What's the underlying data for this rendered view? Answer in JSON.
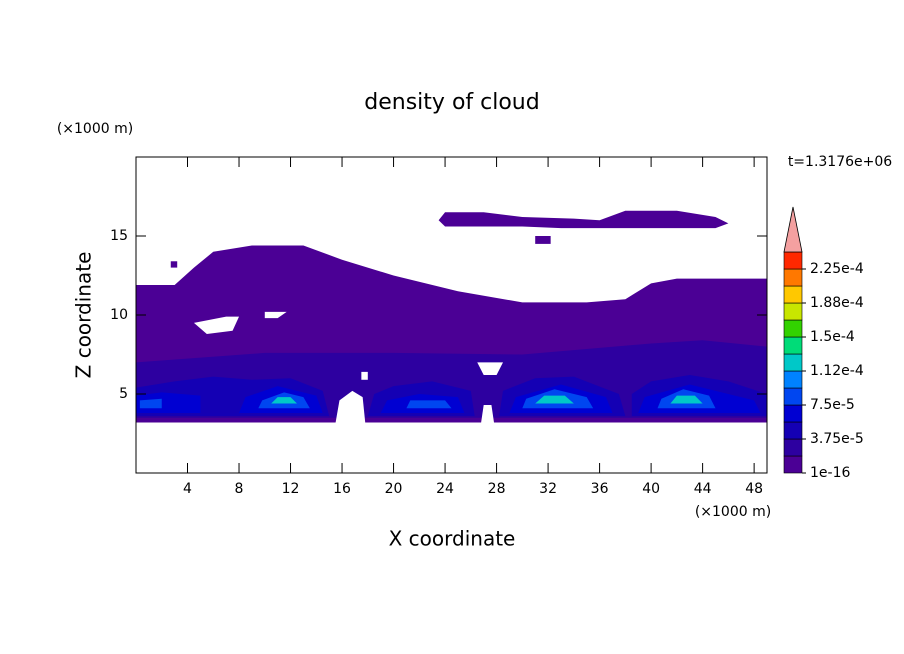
{
  "chart_data": {
    "type": "contour",
    "title": "density of cloud",
    "x_label": "X coordinate",
    "y_label": "Z coordinate",
    "x_unit_label": "(×1000 m)",
    "y_unit_label": "(×1000 m)",
    "annotation": "t=1.3176e+06",
    "xlim": [
      0,
      49
    ],
    "ylim": [
      0,
      20
    ],
    "xticks": [
      4,
      8,
      12,
      16,
      20,
      24,
      28,
      32,
      36,
      40,
      44,
      48
    ],
    "yticks": [
      5,
      10,
      15
    ],
    "colorbar": {
      "levels": [
        1e-16,
        1.875e-05,
        3.75e-05,
        5.625e-05,
        7.5e-05,
        9.375e-05,
        0.0001125,
        0.00013125,
        0.00015,
        0.00016875,
        0.0001875,
        0.00020625,
        0.000225,
        0.00024375
      ],
      "colors": [
        "#4b0095",
        "#2d00a0",
        "#1400b4",
        "#0000d2",
        "#0046f0",
        "#0082ff",
        "#00c8c8",
        "#00dc78",
        "#32d200",
        "#c8e600",
        "#ffc800",
        "#ff7800",
        "#ff2800"
      ],
      "extend_color": "#f4a0a0",
      "ticks": [
        {
          "value": 1e-16,
          "label": "1e-16"
        },
        {
          "value": 3.75e-05,
          "label": "3.75e-5"
        },
        {
          "value": 7.5e-05,
          "label": "7.5e-5"
        },
        {
          "value": 0.0001125,
          "label": "1.12e-4"
        },
        {
          "value": 0.00015,
          "label": "1.5e-4"
        },
        {
          "value": 0.0001875,
          "label": "1.88e-4"
        },
        {
          "value": 0.000225,
          "label": "2.25e-4"
        }
      ]
    },
    "regions": [
      {
        "level": 0,
        "points": [
          [
            0,
            11.9
          ],
          [
            3,
            11.9
          ],
          [
            4.5,
            13
          ],
          [
            6,
            14
          ],
          [
            9,
            14.4
          ],
          [
            13,
            14.4
          ],
          [
            16,
            13.5
          ],
          [
            20,
            12.5
          ],
          [
            25,
            11.5
          ],
          [
            30,
            10.8
          ],
          [
            35,
            10.8
          ],
          [
            38,
            11
          ],
          [
            40,
            12
          ],
          [
            42,
            12.3
          ],
          [
            49,
            12.3
          ],
          [
            49,
            3.2
          ],
          [
            0,
            3.2
          ]
        ]
      },
      {
        "level": 0,
        "points": [
          [
            23.5,
            16
          ],
          [
            24,
            16.5
          ],
          [
            27,
            16.5
          ],
          [
            30,
            16.2
          ],
          [
            34,
            16.1
          ],
          [
            36,
            16
          ],
          [
            38,
            16.6
          ],
          [
            42,
            16.6
          ],
          [
            45,
            16.2
          ],
          [
            46,
            15.8
          ],
          [
            45,
            15.5
          ],
          [
            38,
            15.5
          ],
          [
            33,
            15.5
          ],
          [
            30,
            15.6
          ],
          [
            24,
            15.6
          ]
        ]
      },
      {
        "level": 0,
        "points": [
          [
            31,
            15
          ],
          [
            32.2,
            15
          ],
          [
            32.2,
            14.5
          ],
          [
            31,
            14.5
          ]
        ]
      },
      {
        "level": 0,
        "points": [
          [
            2.7,
            13.4
          ],
          [
            3.2,
            13.4
          ],
          [
            3.2,
            13
          ],
          [
            2.7,
            13
          ]
        ]
      },
      {
        "level": 1,
        "points": [
          [
            0,
            3.5
          ],
          [
            49,
            3.5
          ],
          [
            49,
            8
          ],
          [
            44,
            8.4
          ],
          [
            40,
            8.2
          ],
          [
            30,
            7.5
          ],
          [
            20,
            7.6
          ],
          [
            10,
            7.6
          ],
          [
            0,
            7
          ]
        ]
      },
      {
        "level": 2,
        "points": [
          [
            0,
            3.6
          ],
          [
            15,
            3.6
          ],
          [
            14.5,
            5.2
          ],
          [
            12,
            6
          ],
          [
            9,
            5.9
          ],
          [
            6,
            6.1
          ],
          [
            3,
            5.8
          ],
          [
            0,
            5.4
          ]
        ]
      },
      {
        "level": 2,
        "points": [
          [
            18,
            3.6
          ],
          [
            26.3,
            3.6
          ],
          [
            26,
            5.2
          ],
          [
            23,
            5.8
          ],
          [
            20,
            5.5
          ],
          [
            18.5,
            5
          ]
        ]
      },
      {
        "level": 2,
        "points": [
          [
            28.2,
            3.6
          ],
          [
            38,
            3.6
          ],
          [
            37.5,
            5
          ],
          [
            34,
            6.1
          ],
          [
            31,
            6
          ],
          [
            28.5,
            5.2
          ]
        ]
      },
      {
        "level": 2,
        "points": [
          [
            38.5,
            3.6
          ],
          [
            49,
            3.6
          ],
          [
            49,
            5
          ],
          [
            46,
            5.8
          ],
          [
            43,
            6.2
          ],
          [
            40,
            5.8
          ],
          [
            38.5,
            5
          ]
        ]
      },
      {
        "level": 3,
        "points": [
          [
            0,
            3.8
          ],
          [
            5,
            3.8
          ],
          [
            5,
            4.9
          ],
          [
            2,
            5.1
          ],
          [
            0,
            4.9
          ]
        ]
      },
      {
        "level": 3,
        "points": [
          [
            8,
            3.8
          ],
          [
            14.5,
            3.8
          ],
          [
            14,
            4.9
          ],
          [
            11,
            5.5
          ],
          [
            8.5,
            4.8
          ]
        ]
      },
      {
        "level": 3,
        "points": [
          [
            19,
            3.8
          ],
          [
            25.5,
            3.8
          ],
          [
            25,
            4.8
          ],
          [
            22,
            5
          ],
          [
            19.5,
            4.6
          ]
        ]
      },
      {
        "level": 3,
        "points": [
          [
            29,
            3.8
          ],
          [
            37,
            3.8
          ],
          [
            36.5,
            4.8
          ],
          [
            33,
            5.6
          ],
          [
            29.5,
            4.8
          ]
        ]
      },
      {
        "level": 3,
        "points": [
          [
            39,
            3.8
          ],
          [
            48.5,
            3.8
          ],
          [
            48,
            4.6
          ],
          [
            43,
            5.6
          ],
          [
            39.5,
            4.8
          ]
        ]
      },
      {
        "level": 4,
        "points": [
          [
            0.3,
            4.1
          ],
          [
            2,
            4.1
          ],
          [
            2,
            4.7
          ],
          [
            0.3,
            4.6
          ]
        ]
      },
      {
        "level": 4,
        "points": [
          [
            9.5,
            4.1
          ],
          [
            13.5,
            4.1
          ],
          [
            13,
            4.8
          ],
          [
            11.5,
            5.1
          ],
          [
            9.8,
            4.6
          ]
        ]
      },
      {
        "level": 4,
        "points": [
          [
            21,
            4.1
          ],
          [
            24.5,
            4.1
          ],
          [
            24,
            4.6
          ],
          [
            21.3,
            4.6
          ]
        ]
      },
      {
        "level": 4,
        "points": [
          [
            30,
            4.1
          ],
          [
            35.5,
            4.1
          ],
          [
            35,
            4.8
          ],
          [
            32.5,
            5.3
          ],
          [
            30.3,
            4.7
          ]
        ]
      },
      {
        "level": 4,
        "points": [
          [
            40.5,
            4.1
          ],
          [
            45,
            4.1
          ],
          [
            44.5,
            4.9
          ],
          [
            42.5,
            5.3
          ],
          [
            40.8,
            4.7
          ]
        ]
      },
      {
        "level": 6,
        "points": [
          [
            10.5,
            4.4
          ],
          [
            12.5,
            4.4
          ],
          [
            12,
            4.8
          ],
          [
            11,
            4.8
          ]
        ]
      },
      {
        "level": 6,
        "points": [
          [
            31,
            4.4
          ],
          [
            34,
            4.4
          ],
          [
            33.3,
            4.9
          ],
          [
            31.7,
            4.9
          ]
        ]
      },
      {
        "level": 6,
        "points": [
          [
            41.5,
            4.4
          ],
          [
            44,
            4.4
          ],
          [
            43.4,
            4.9
          ],
          [
            42,
            4.9
          ]
        ]
      },
      {
        "level": null,
        "points": [
          [
            4.5,
            9.5
          ],
          [
            7,
            9.9
          ],
          [
            8,
            9.9
          ],
          [
            7.5,
            9
          ],
          [
            5.5,
            8.8
          ]
        ]
      },
      {
        "level": null,
        "points": [
          [
            10,
            10.2
          ],
          [
            11.7,
            10.2
          ],
          [
            11,
            9.8
          ],
          [
            10,
            9.8
          ]
        ]
      },
      {
        "level": null,
        "points": [
          [
            26.5,
            7
          ],
          [
            28.5,
            7
          ],
          [
            28,
            6.2
          ],
          [
            27,
            6.2
          ]
        ]
      },
      {
        "level": null,
        "points": [
          [
            17.5,
            6.4
          ],
          [
            18,
            6.4
          ],
          [
            18,
            5.9
          ],
          [
            17.5,
            5.9
          ]
        ]
      },
      {
        "level": null,
        "points": [
          [
            15.5,
            3.2
          ],
          [
            15.8,
            4.6
          ],
          [
            16.8,
            5.2
          ],
          [
            17.6,
            4.8
          ],
          [
            17.8,
            3.2
          ]
        ]
      },
      {
        "level": null,
        "points": [
          [
            26.8,
            3.2
          ],
          [
            27,
            4.3
          ],
          [
            27.6,
            4.3
          ],
          [
            27.8,
            3.2
          ]
        ]
      }
    ]
  }
}
